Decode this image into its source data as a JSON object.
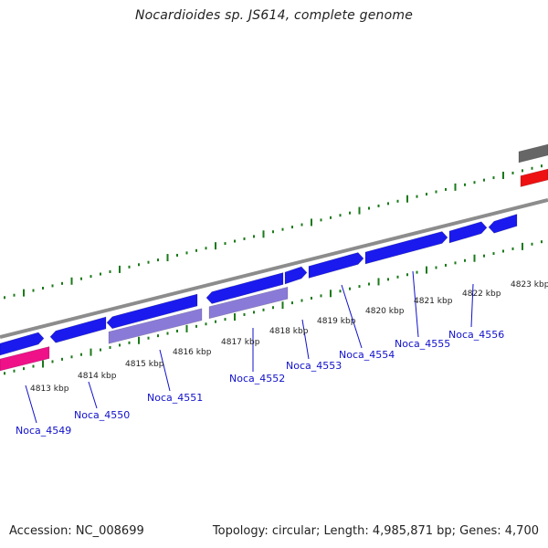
{
  "title": "Nocardioides sp. JS614, complete genome",
  "footer": {
    "accession": "Accession: NC_008699",
    "topology": "Topology: circular; Length: 4,985,871 bp; Genes: 4,700"
  },
  "colors": {
    "forward_cds": "#1a1aee",
    "reverse_cds": "#8a7ad8",
    "pink_feature": "#ee1188",
    "red_feature": "#ee1111",
    "gray_feature": "#666666",
    "backbone": "#8c8c8c",
    "ticks": "#1a7a1a",
    "label": "#1010cc"
  },
  "kbp_labels": [
    {
      "text": "4813 kbp"
    },
    {
      "text": "4814 kbp"
    },
    {
      "text": "4815 kbp"
    },
    {
      "text": "4816 kbp"
    },
    {
      "text": "4817 kbp"
    },
    {
      "text": "4818 kbp"
    },
    {
      "text": "4819 kbp"
    },
    {
      "text": "4820 kbp"
    },
    {
      "text": "4821 kbp"
    },
    {
      "text": "4822 kbp"
    },
    {
      "text": "4823 kbp"
    }
  ],
  "gene_labels": [
    {
      "text": "Noca_4549"
    },
    {
      "text": "Noca_4550"
    },
    {
      "text": "Noca_4551"
    },
    {
      "text": "Noca_4552"
    },
    {
      "text": "Noca_4553"
    },
    {
      "text": "Noca_4554"
    },
    {
      "text": "Noca_4555"
    },
    {
      "text": "Noca_4556"
    }
  ]
}
